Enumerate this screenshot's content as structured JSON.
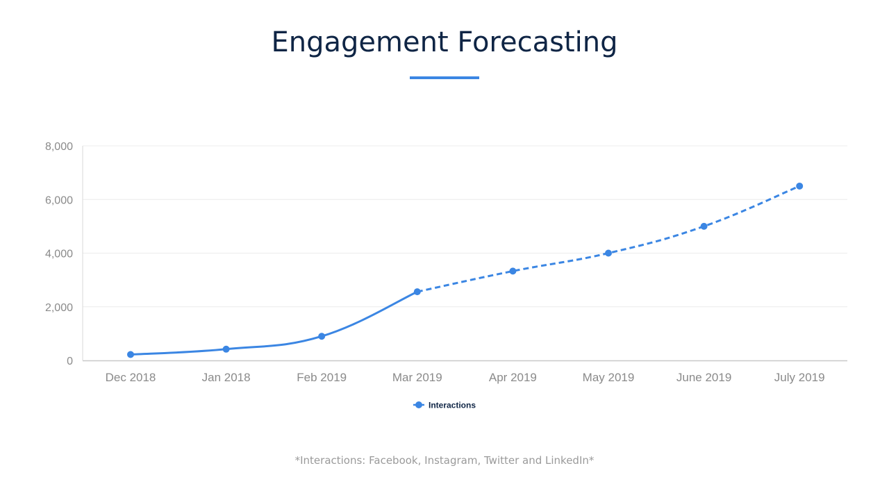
{
  "page": {
    "title": "Engagement Forecasting",
    "accent_color": "#3b86e3",
    "footnote": "*Interactions: Facebook, Instagram, Twitter and LinkedIn*"
  },
  "chart_data": {
    "type": "line",
    "title": "Engagement Forecasting",
    "xlabel": "",
    "ylabel": "",
    "categories": [
      "Dec 2018",
      "Jan 2018",
      "Feb 2019",
      "Mar 2019",
      "Apr 2019",
      "May 2019",
      "June 2019",
      "July 2019"
    ],
    "y_ticks": [
      0,
      2000,
      4000,
      6000,
      8000
    ],
    "y_tick_labels": [
      "0",
      "2,000",
      "4,000",
      "6,000",
      "8,000"
    ],
    "ylim": [
      0,
      8000
    ],
    "grid": true,
    "legend": "bottom-center",
    "series": [
      {
        "name": "Interactions",
        "color": "#3b86e3",
        "values": [
          220,
          420,
          900,
          2560,
          3330,
          4000,
          5000,
          6500
        ],
        "actual_through_index": 3,
        "forecast_style": "dashed"
      }
    ]
  }
}
